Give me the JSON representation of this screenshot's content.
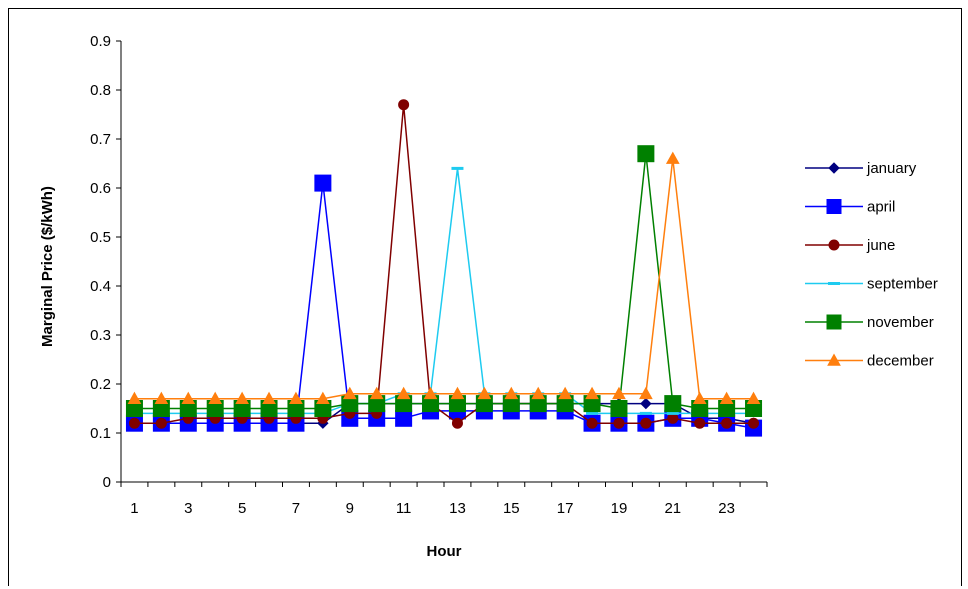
{
  "chart_data": {
    "type": "line",
    "title": "",
    "xlabel": "Hour",
    "ylabel": "Marginal Price ($/kWh)",
    "ylim": [
      0,
      0.9
    ],
    "yticks": [
      "0",
      "0.1",
      "0.2",
      "0.3",
      "0.4",
      "0.5",
      "0.6",
      "0.7",
      "0.8",
      "0.9"
    ],
    "x": [
      1,
      2,
      3,
      4,
      5,
      6,
      7,
      8,
      9,
      10,
      11,
      12,
      13,
      14,
      15,
      16,
      17,
      18,
      19,
      20,
      21,
      22,
      23,
      24
    ],
    "xtick_labels": [
      "1",
      "3",
      "5",
      "7",
      "9",
      "11",
      "13",
      "15",
      "17",
      "19",
      "21",
      "23"
    ],
    "grid": false,
    "legend_position": "right",
    "series": [
      {
        "name": "january",
        "color": "#000080",
        "marker": "diamond",
        "values": [
          0.12,
          0.12,
          0.12,
          0.12,
          0.12,
          0.12,
          0.12,
          0.12,
          0.16,
          0.16,
          0.16,
          0.16,
          0.16,
          0.16,
          0.16,
          0.16,
          0.16,
          0.16,
          0.16,
          0.16,
          0.16,
          0.13,
          0.13,
          0.12
        ]
      },
      {
        "name": "april",
        "color": "#0000ff",
        "marker": "square",
        "values": [
          0.12,
          0.12,
          0.12,
          0.12,
          0.12,
          0.12,
          0.12,
          0.61,
          0.13,
          0.13,
          0.13,
          0.145,
          0.145,
          0.145,
          0.145,
          0.145,
          0.145,
          0.12,
          0.12,
          0.12,
          0.13,
          0.13,
          0.12,
          0.11
        ]
      },
      {
        "name": "june",
        "color": "#800000",
        "marker": "circle",
        "values": [
          0.12,
          0.12,
          0.13,
          0.13,
          0.13,
          0.13,
          0.13,
          0.13,
          0.14,
          0.14,
          0.77,
          0.16,
          0.12,
          0.16,
          0.16,
          0.16,
          0.16,
          0.12,
          0.12,
          0.12,
          0.13,
          0.12,
          0.12,
          0.12
        ]
      },
      {
        "name": "september",
        "color": "#1ecbf0",
        "marker": "dash",
        "values": [
          0.14,
          0.14,
          0.14,
          0.14,
          0.14,
          0.14,
          0.14,
          0.14,
          0.16,
          0.16,
          0.18,
          0.18,
          0.64,
          0.18,
          0.18,
          0.18,
          0.18,
          0.14,
          0.14,
          0.14,
          0.14,
          0.14,
          0.14,
          0.14
        ]
      },
      {
        "name": "november",
        "color": "#008000",
        "marker": "square",
        "values": [
          0.15,
          0.15,
          0.15,
          0.15,
          0.15,
          0.15,
          0.15,
          0.15,
          0.16,
          0.16,
          0.16,
          0.16,
          0.16,
          0.16,
          0.16,
          0.16,
          0.16,
          0.16,
          0.15,
          0.67,
          0.16,
          0.15,
          0.15,
          0.15
        ]
      },
      {
        "name": "december",
        "color": "#ff7f0e",
        "marker": "triangle",
        "values": [
          0.17,
          0.17,
          0.17,
          0.17,
          0.17,
          0.17,
          0.17,
          0.17,
          0.18,
          0.18,
          0.18,
          0.18,
          0.18,
          0.18,
          0.18,
          0.18,
          0.18,
          0.18,
          0.18,
          0.18,
          0.66,
          0.17,
          0.17,
          0.17
        ]
      }
    ]
  }
}
